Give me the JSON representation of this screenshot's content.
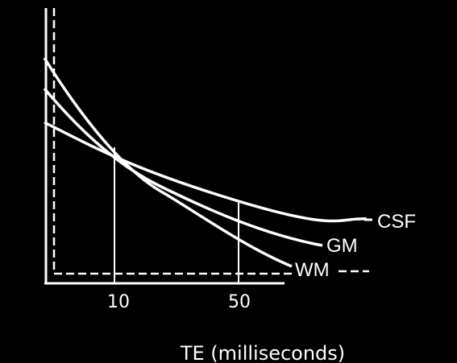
{
  "chart_data": {
    "type": "line",
    "xlabel": "TE (milliseconds)",
    "ylabel": "",
    "title": "",
    "grid": false,
    "x_ticks": [
      10,
      50
    ],
    "marked_x": [
      10,
      50
    ],
    "series": [
      {
        "name": "CSF",
        "color": "#ffffff"
      },
      {
        "name": "GM",
        "color": "#ffffff"
      },
      {
        "name": "WM",
        "color": "#ffffff"
      }
    ]
  }
}
